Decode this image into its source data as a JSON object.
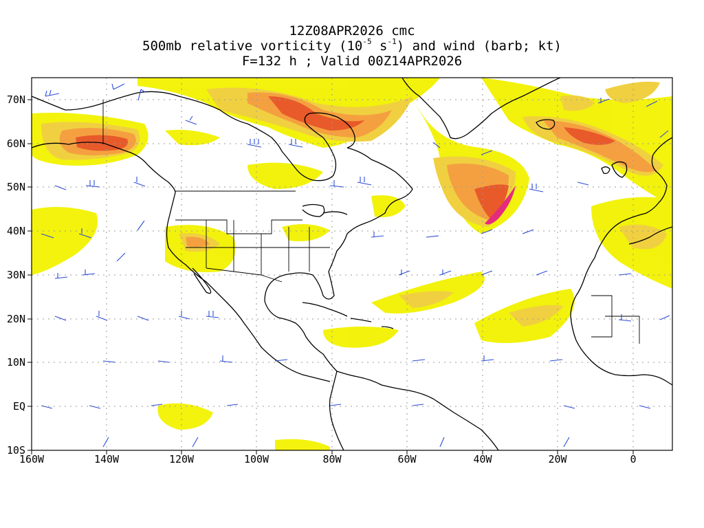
{
  "title": {
    "line1": "12Z08APR2026 cmc",
    "line2_pre": "500mb relative vorticity (10",
    "line2_exp1": "-5",
    "line2_mid": " s",
    "line2_exp2": "-1",
    "line2_post": ") and wind (barb; kt)",
    "line3": "F=132 h ; Valid 00Z14APR2026"
  },
  "axes": {
    "lat_labels": [
      "70N",
      "60N",
      "50N",
      "40N",
      "30N",
      "20N",
      "10N",
      "EQ",
      "10S"
    ],
    "lon_labels": [
      "160W",
      "140W",
      "120W",
      "100W",
      "80W",
      "60W",
      "40W",
      "20W",
      "0"
    ]
  },
  "colors": {
    "contour_light": "#f2f200",
    "contour_yellow": "#f0e040",
    "contour_orange_light": "#f5b24a",
    "contour_orange": "#ef7a2a",
    "contour_red": "#e8432a",
    "contour_magenta": "#e52b7d",
    "barb": "#2b4bd6",
    "coast": "#000000",
    "grid": "#9a9a9a"
  }
}
